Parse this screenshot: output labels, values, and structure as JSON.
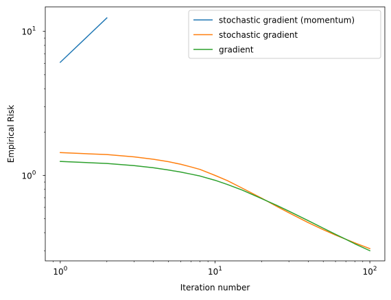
{
  "chart_data": {
    "type": "line",
    "title": "",
    "xlabel": "Iteration number",
    "ylabel": "Empirical Risk",
    "xscale": "log",
    "yscale": "log",
    "xlim": [
      0.8,
      125
    ],
    "ylim": [
      0.255,
      14.8
    ],
    "grid": false,
    "legend_position": "top-right",
    "x_major_ticks": [
      {
        "value": 1,
        "base": "10",
        "exp": "0"
      },
      {
        "value": 10,
        "base": "10",
        "exp": "1"
      },
      {
        "value": 100,
        "base": "10",
        "exp": "2"
      }
    ],
    "y_major_ticks": [
      {
        "value": 1,
        "base": "10",
        "exp": "0"
      },
      {
        "value": 10,
        "base": "10",
        "exp": "1"
      }
    ],
    "series": [
      {
        "name": "stochastic gradient (momentum)",
        "color": "#1f77b4",
        "x": [
          1,
          2
        ],
        "y": [
          6.1,
          12.4
        ]
      },
      {
        "name": "stochastic gradient",
        "color": "#ff7f0e",
        "x": [
          1,
          2,
          3,
          4,
          5,
          6,
          7,
          8,
          10,
          12,
          15,
          20,
          25,
          30,
          40,
          50,
          60,
          70,
          80,
          100
        ],
        "y": [
          1.44,
          1.395,
          1.345,
          1.295,
          1.245,
          1.195,
          1.145,
          1.1,
          1.0,
          0.92,
          0.815,
          0.695,
          0.61,
          0.55,
          0.47,
          0.42,
          0.385,
          0.36,
          0.34,
          0.31
        ]
      },
      {
        "name": "gradient",
        "color": "#2ca02c",
        "x": [
          1,
          2,
          3,
          4,
          5,
          6,
          7,
          8,
          10,
          12,
          15,
          20,
          25,
          30,
          40,
          50,
          60,
          70,
          80,
          100
        ],
        "y": [
          1.25,
          1.21,
          1.17,
          1.13,
          1.09,
          1.055,
          1.02,
          0.99,
          0.925,
          0.865,
          0.79,
          0.69,
          0.62,
          0.565,
          0.485,
          0.43,
          0.39,
          0.36,
          0.335,
          0.3
        ]
      }
    ]
  }
}
